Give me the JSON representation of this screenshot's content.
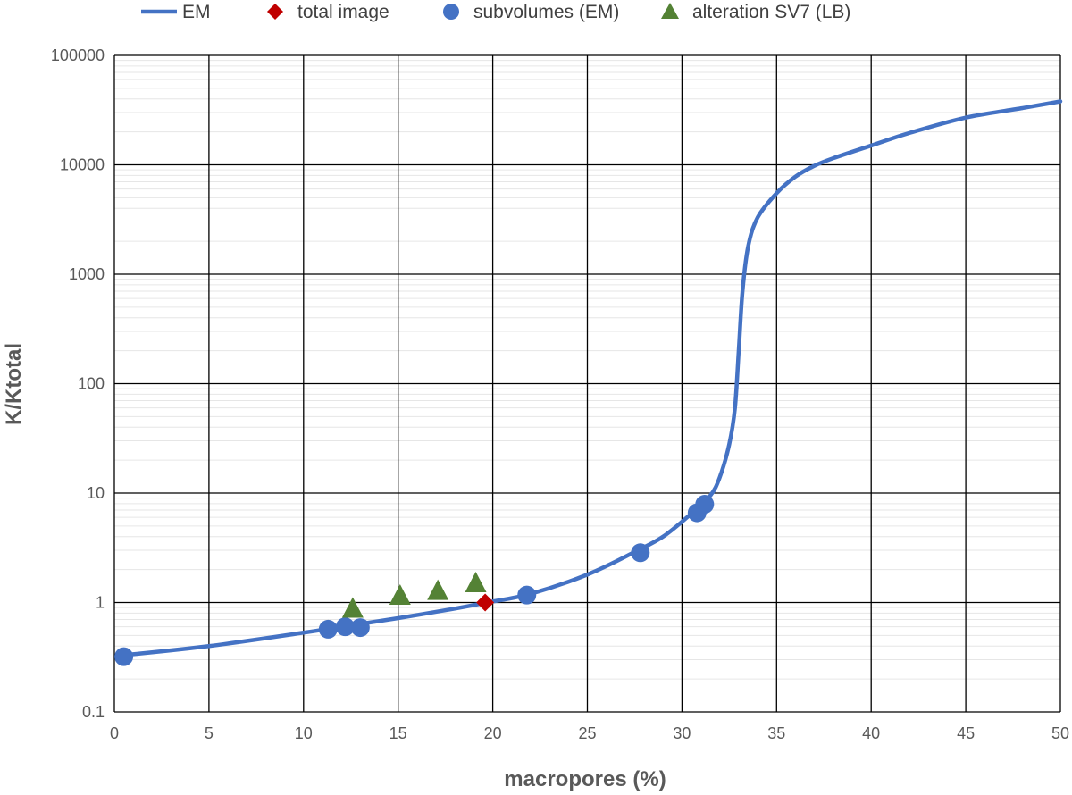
{
  "chart_data": {
    "type": "scatter",
    "xlabel": "macropores (%)",
    "ylabel": "K/Ktotal",
    "xlim": [
      0,
      50
    ],
    "ylim": [
      0.1,
      100000
    ],
    "y_scale": "log",
    "x_ticks": [
      "0",
      "5",
      "10",
      "15",
      "20",
      "25",
      "30",
      "35",
      "40",
      "45",
      "50"
    ],
    "y_ticks": [
      "0.1",
      "1",
      "10",
      "100",
      "1000",
      "10000",
      "100000"
    ],
    "grid": true,
    "legend_position": "top",
    "series": [
      {
        "name": "EM",
        "kind": "line",
        "color": "#4472C4",
        "x": [
          0.5,
          5,
          10,
          12,
          15,
          18,
          19.7,
          22,
          25,
          27.5,
          29,
          30.5,
          31.5,
          32,
          32.5,
          32.8,
          33.0,
          33.2,
          33.5,
          34,
          35,
          36,
          37,
          38,
          40,
          42,
          45,
          48,
          50
        ],
        "y": [
          0.33,
          0.4,
          0.53,
          0.6,
          0.72,
          0.88,
          1.0,
          1.2,
          1.8,
          2.9,
          4.0,
          6.5,
          9.5,
          14,
          28,
          60,
          200,
          700,
          1800,
          3300,
          5500,
          7800,
          9800,
          11500,
          15000,
          19500,
          27000,
          33000,
          38000
        ]
      },
      {
        "name": "total image",
        "kind": "marker",
        "marker": "diamond",
        "color": "#C00000",
        "x": [
          19.6
        ],
        "y": [
          1.0
        ]
      },
      {
        "name": "subvolumes (EM)",
        "kind": "marker",
        "marker": "circle",
        "color": "#4472C4",
        "x": [
          0.5,
          11.3,
          12.2,
          13.0,
          21.8,
          27.8,
          30.8,
          31.2
        ],
        "y": [
          0.32,
          0.57,
          0.6,
          0.59,
          1.17,
          2.85,
          6.6,
          7.9
        ]
      },
      {
        "name": "alteration SV7 (LB)",
        "kind": "marker",
        "marker": "triangle",
        "color": "#548235",
        "x": [
          12.6,
          15.1,
          17.1,
          19.1
        ],
        "y": [
          0.86,
          1.13,
          1.25,
          1.47
        ]
      }
    ]
  }
}
